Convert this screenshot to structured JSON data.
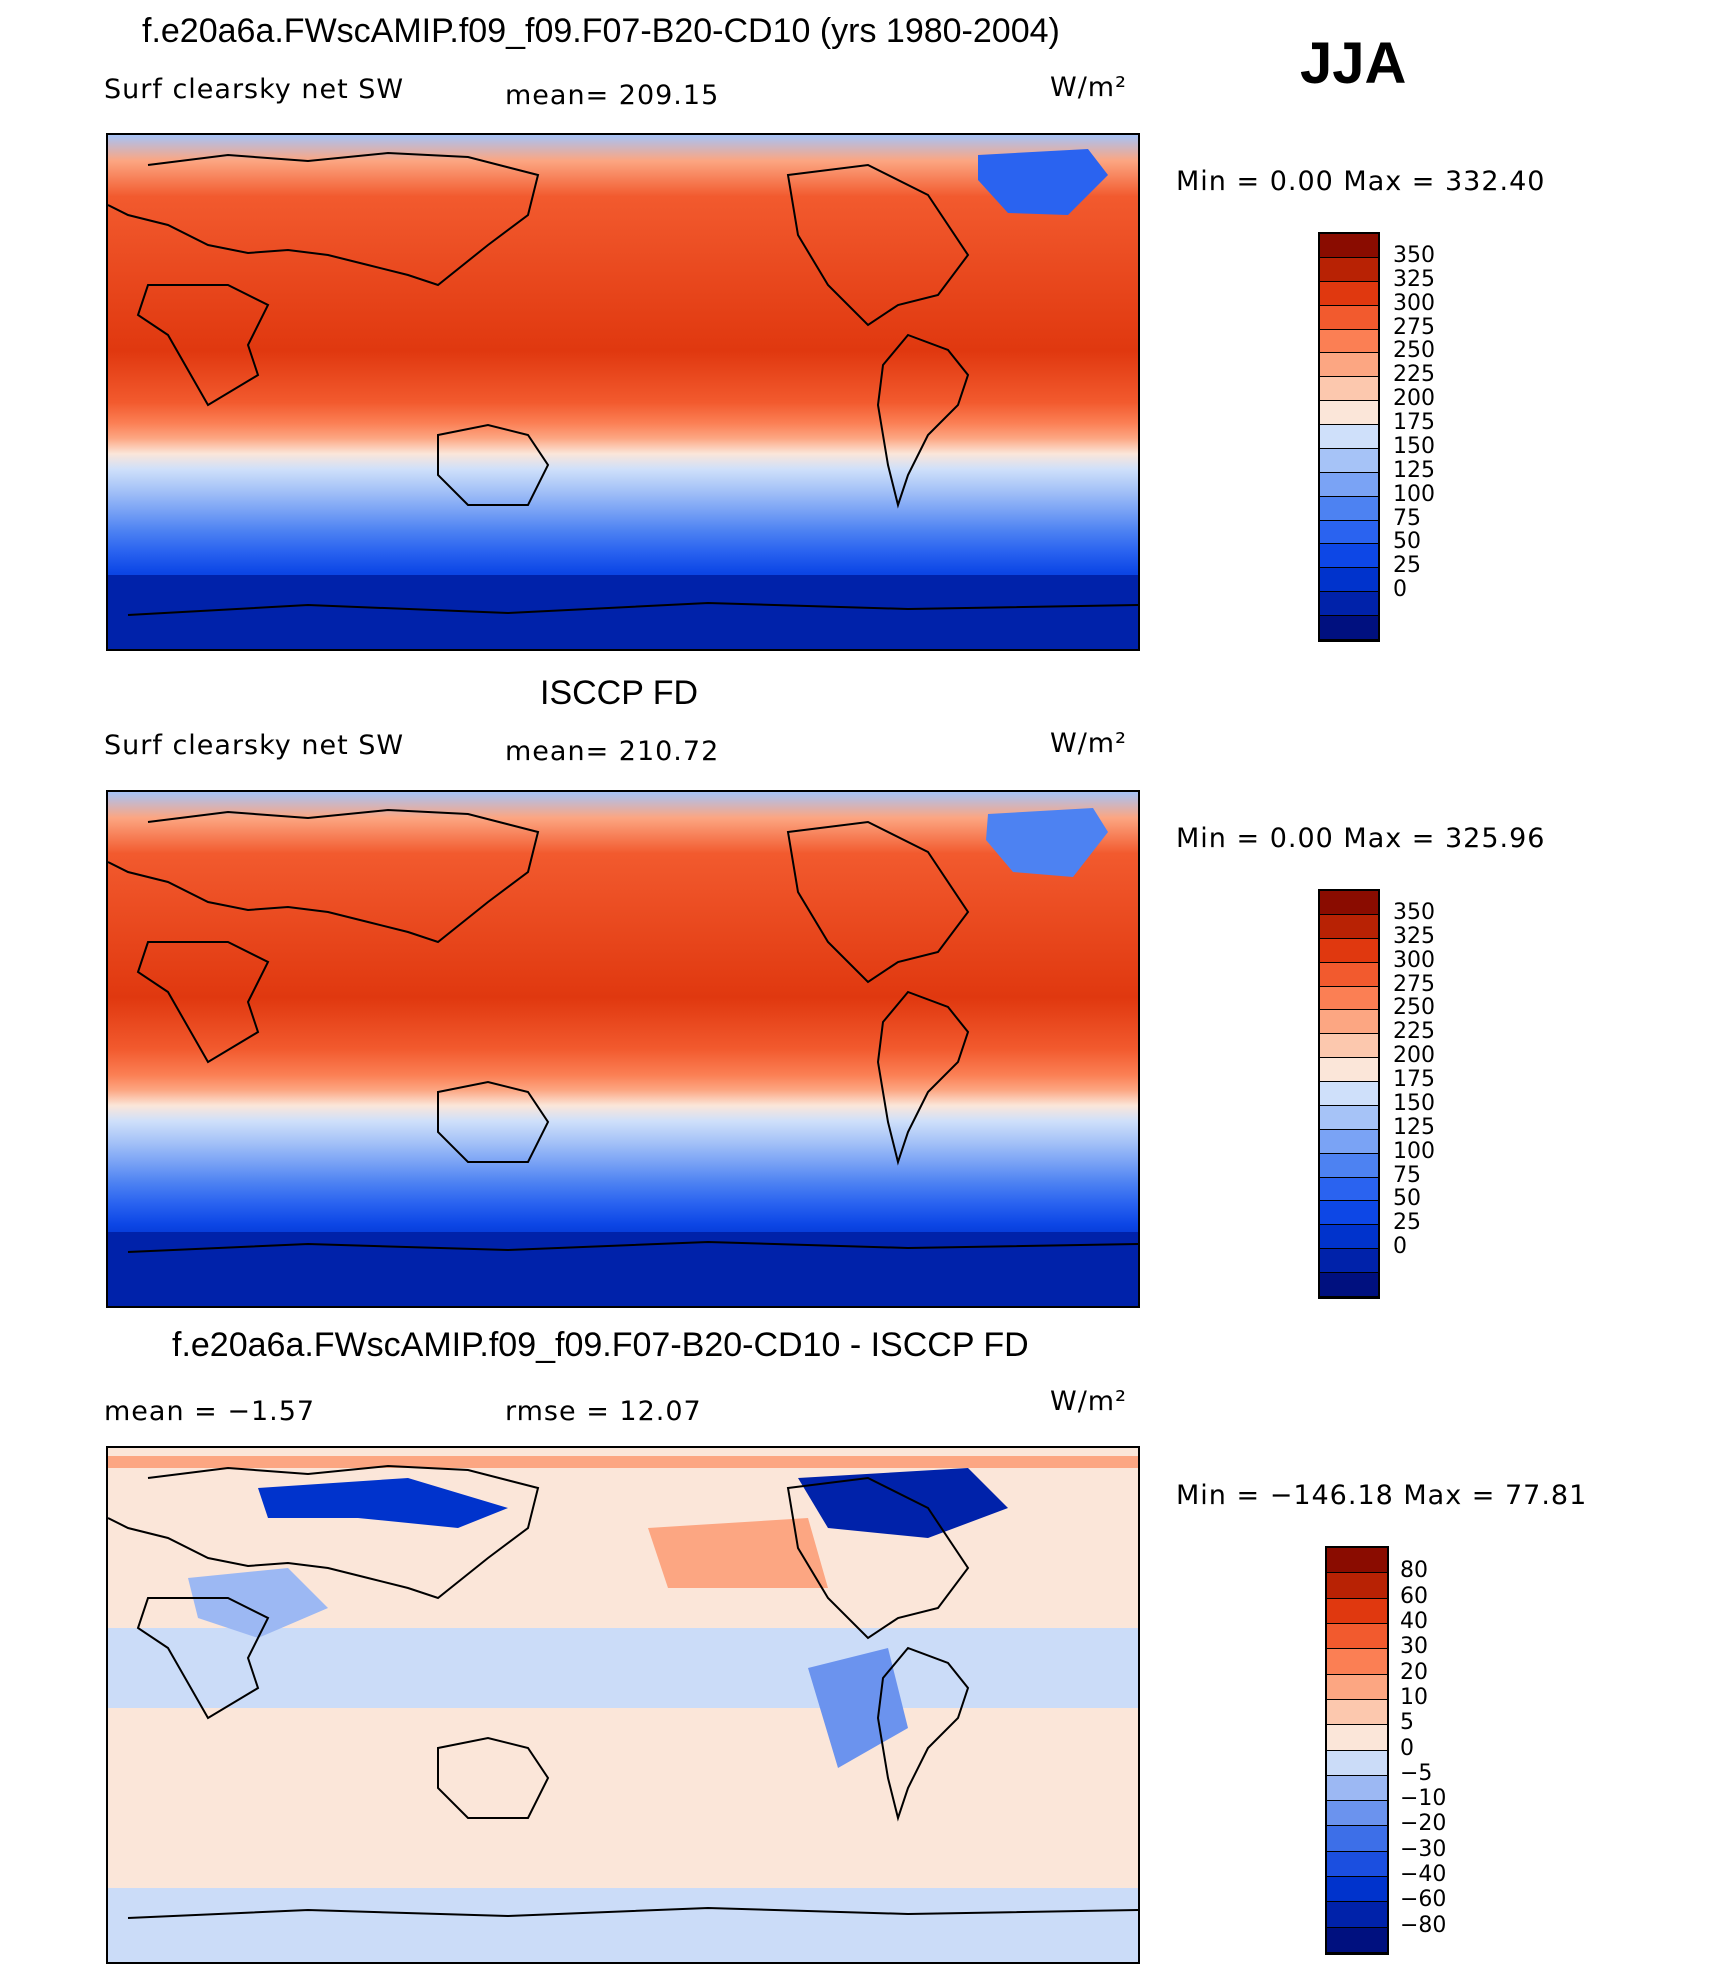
{
  "season": "JJA",
  "units": "W/m²",
  "panels": [
    {
      "title": "f.e20a6a.FWscAMIP.f09_f09.F07-B20-CD10 (yrs 1980-2004)",
      "left_label": "Surf clearsky net SW",
      "center_label": "mean= 209.15",
      "units": "W/m²",
      "minmax": "Min =     0.00 Max = 332.40",
      "colorbar": [
        "#00107f",
        "#0022aa",
        "#0033cc",
        "#0d47e6",
        "#2a63f0",
        "#4d82f2",
        "#7aa3f5",
        "#a6c3f7",
        "#cfe0fa",
        "#fbe6d9",
        "#fcc8ae",
        "#fca682",
        "#fb7f54",
        "#f25a2e",
        "#e0380f",
        "#b82204",
        "#8a0c00"
      ],
      "ticks": [
        "350",
        "325",
        "300",
        "275",
        "250",
        "225",
        "200",
        "175",
        "150",
        "125",
        "100",
        "75",
        "50",
        "25",
        "0"
      ]
    },
    {
      "title": "ISCCP FD",
      "left_label": "Surf clearsky net SW",
      "center_label": "mean= 210.72",
      "units": "W/m²",
      "minmax": "Min =     0.00 Max = 325.96",
      "colorbar": [
        "#00107f",
        "#0022aa",
        "#0033cc",
        "#0d47e6",
        "#2a63f0",
        "#4d82f2",
        "#7aa3f5",
        "#a6c3f7",
        "#cfe0fa",
        "#fbe6d9",
        "#fcc8ae",
        "#fca682",
        "#fb7f54",
        "#f25a2e",
        "#e0380f",
        "#b82204",
        "#8a0c00"
      ],
      "ticks": [
        "350",
        "325",
        "300",
        "275",
        "250",
        "225",
        "200",
        "175",
        "150",
        "125",
        "100",
        "75",
        "50",
        "25",
        "0"
      ]
    },
    {
      "title": "f.e20a6a.FWscAMIP.f09_f09.F07-B20-CD10 - ISCCP FD",
      "left_label": "mean =    −1.57",
      "center_label": "rmse =     12.07",
      "units": "W/m²",
      "minmax": "Min = −146.18 Max =    77.81",
      "colorbar": [
        "#00107f",
        "#0022aa",
        "#0033cc",
        "#1b4fe0",
        "#3d6fe8",
        "#6b93ee",
        "#9cb8f3",
        "#cbdcf8",
        "#fbe6d9",
        "#fcc8ae",
        "#fca682",
        "#fb7f54",
        "#f25a2e",
        "#e0380f",
        "#b82204",
        "#8a0c00"
      ],
      "ticks": [
        "80",
        "60",
        "40",
        "30",
        "20",
        "10",
        "5",
        "0",
        "−5",
        "−10",
        "−20",
        "−30",
        "−40",
        "−60",
        "−80"
      ]
    }
  ]
}
